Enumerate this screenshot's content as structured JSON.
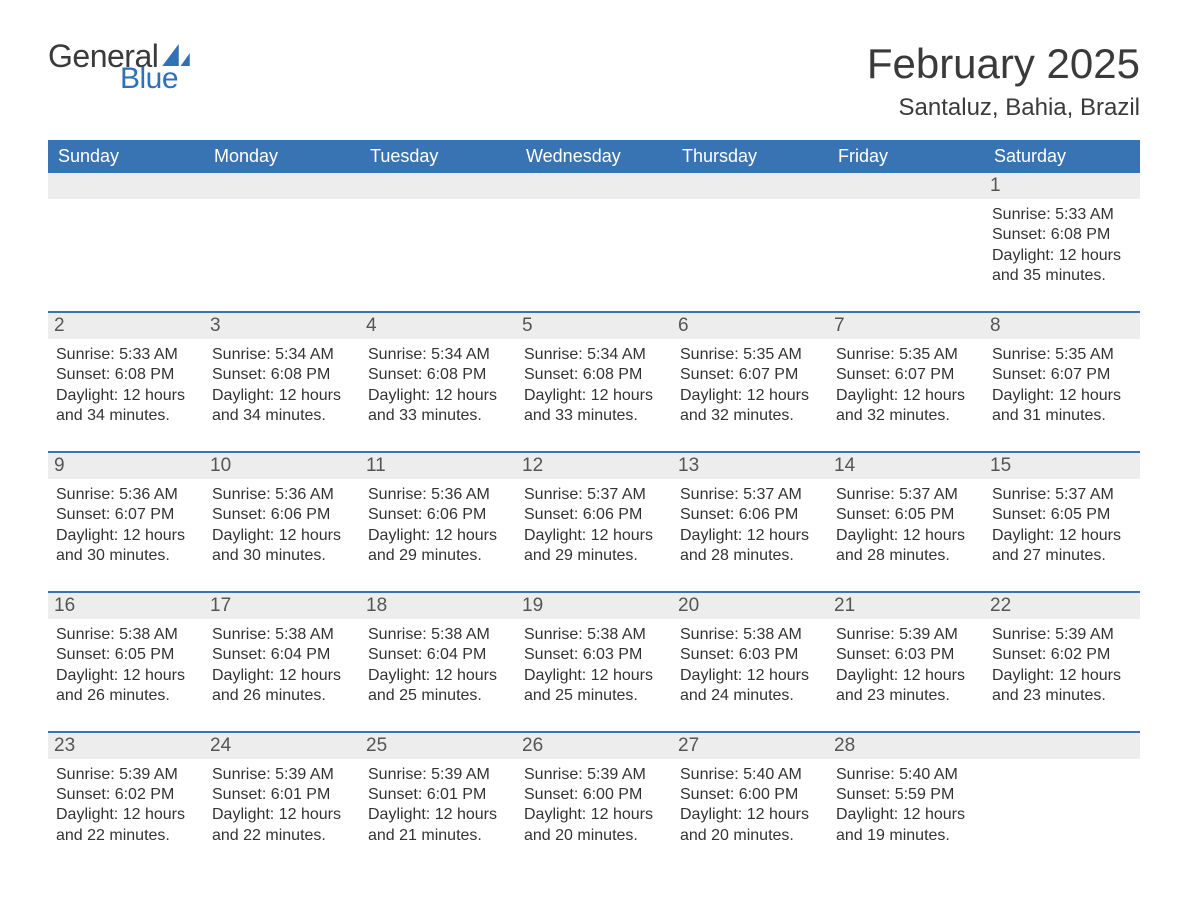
{
  "logo": {
    "general": "General",
    "blue": "Blue"
  },
  "title": "February 2025",
  "location": "Santaluz, Bahia, Brazil",
  "colors": {
    "header_bg": "#3874b3",
    "header_fg": "#ffffff",
    "row_divider": "#3874b3",
    "daynum_bg": "#ededed",
    "text": "#333333",
    "logo_blue": "#2f70b8",
    "background": "#ffffff"
  },
  "day_of_week": [
    "Sunday",
    "Monday",
    "Tuesday",
    "Wednesday",
    "Thursday",
    "Friday",
    "Saturday"
  ],
  "weeks": [
    [
      null,
      null,
      null,
      null,
      null,
      null,
      {
        "n": "1",
        "sunrise": "Sunrise: 5:33 AM",
        "sunset": "Sunset: 6:08 PM",
        "day1": "Daylight: 12 hours",
        "day2": "and 35 minutes."
      }
    ],
    [
      {
        "n": "2",
        "sunrise": "Sunrise: 5:33 AM",
        "sunset": "Sunset: 6:08 PM",
        "day1": "Daylight: 12 hours",
        "day2": "and 34 minutes."
      },
      {
        "n": "3",
        "sunrise": "Sunrise: 5:34 AM",
        "sunset": "Sunset: 6:08 PM",
        "day1": "Daylight: 12 hours",
        "day2": "and 34 minutes."
      },
      {
        "n": "4",
        "sunrise": "Sunrise: 5:34 AM",
        "sunset": "Sunset: 6:08 PM",
        "day1": "Daylight: 12 hours",
        "day2": "and 33 minutes."
      },
      {
        "n": "5",
        "sunrise": "Sunrise: 5:34 AM",
        "sunset": "Sunset: 6:08 PM",
        "day1": "Daylight: 12 hours",
        "day2": "and 33 minutes."
      },
      {
        "n": "6",
        "sunrise": "Sunrise: 5:35 AM",
        "sunset": "Sunset: 6:07 PM",
        "day1": "Daylight: 12 hours",
        "day2": "and 32 minutes."
      },
      {
        "n": "7",
        "sunrise": "Sunrise: 5:35 AM",
        "sunset": "Sunset: 6:07 PM",
        "day1": "Daylight: 12 hours",
        "day2": "and 32 minutes."
      },
      {
        "n": "8",
        "sunrise": "Sunrise: 5:35 AM",
        "sunset": "Sunset: 6:07 PM",
        "day1": "Daylight: 12 hours",
        "day2": "and 31 minutes."
      }
    ],
    [
      {
        "n": "9",
        "sunrise": "Sunrise: 5:36 AM",
        "sunset": "Sunset: 6:07 PM",
        "day1": "Daylight: 12 hours",
        "day2": "and 30 minutes."
      },
      {
        "n": "10",
        "sunrise": "Sunrise: 5:36 AM",
        "sunset": "Sunset: 6:06 PM",
        "day1": "Daylight: 12 hours",
        "day2": "and 30 minutes."
      },
      {
        "n": "11",
        "sunrise": "Sunrise: 5:36 AM",
        "sunset": "Sunset: 6:06 PM",
        "day1": "Daylight: 12 hours",
        "day2": "and 29 minutes."
      },
      {
        "n": "12",
        "sunrise": "Sunrise: 5:37 AM",
        "sunset": "Sunset: 6:06 PM",
        "day1": "Daylight: 12 hours",
        "day2": "and 29 minutes."
      },
      {
        "n": "13",
        "sunrise": "Sunrise: 5:37 AM",
        "sunset": "Sunset: 6:06 PM",
        "day1": "Daylight: 12 hours",
        "day2": "and 28 minutes."
      },
      {
        "n": "14",
        "sunrise": "Sunrise: 5:37 AM",
        "sunset": "Sunset: 6:05 PM",
        "day1": "Daylight: 12 hours",
        "day2": "and 28 minutes."
      },
      {
        "n": "15",
        "sunrise": "Sunrise: 5:37 AM",
        "sunset": "Sunset: 6:05 PM",
        "day1": "Daylight: 12 hours",
        "day2": "and 27 minutes."
      }
    ],
    [
      {
        "n": "16",
        "sunrise": "Sunrise: 5:38 AM",
        "sunset": "Sunset: 6:05 PM",
        "day1": "Daylight: 12 hours",
        "day2": "and 26 minutes."
      },
      {
        "n": "17",
        "sunrise": "Sunrise: 5:38 AM",
        "sunset": "Sunset: 6:04 PM",
        "day1": "Daylight: 12 hours",
        "day2": "and 26 minutes."
      },
      {
        "n": "18",
        "sunrise": "Sunrise: 5:38 AM",
        "sunset": "Sunset: 6:04 PM",
        "day1": "Daylight: 12 hours",
        "day2": "and 25 minutes."
      },
      {
        "n": "19",
        "sunrise": "Sunrise: 5:38 AM",
        "sunset": "Sunset: 6:03 PM",
        "day1": "Daylight: 12 hours",
        "day2": "and 25 minutes."
      },
      {
        "n": "20",
        "sunrise": "Sunrise: 5:38 AM",
        "sunset": "Sunset: 6:03 PM",
        "day1": "Daylight: 12 hours",
        "day2": "and 24 minutes."
      },
      {
        "n": "21",
        "sunrise": "Sunrise: 5:39 AM",
        "sunset": "Sunset: 6:03 PM",
        "day1": "Daylight: 12 hours",
        "day2": "and 23 minutes."
      },
      {
        "n": "22",
        "sunrise": "Sunrise: 5:39 AM",
        "sunset": "Sunset: 6:02 PM",
        "day1": "Daylight: 12 hours",
        "day2": "and 23 minutes."
      }
    ],
    [
      {
        "n": "23",
        "sunrise": "Sunrise: 5:39 AM",
        "sunset": "Sunset: 6:02 PM",
        "day1": "Daylight: 12 hours",
        "day2": "and 22 minutes."
      },
      {
        "n": "24",
        "sunrise": "Sunrise: 5:39 AM",
        "sunset": "Sunset: 6:01 PM",
        "day1": "Daylight: 12 hours",
        "day2": "and 22 minutes."
      },
      {
        "n": "25",
        "sunrise": "Sunrise: 5:39 AM",
        "sunset": "Sunset: 6:01 PM",
        "day1": "Daylight: 12 hours",
        "day2": "and 21 minutes."
      },
      {
        "n": "26",
        "sunrise": "Sunrise: 5:39 AM",
        "sunset": "Sunset: 6:00 PM",
        "day1": "Daylight: 12 hours",
        "day2": "and 20 minutes."
      },
      {
        "n": "27",
        "sunrise": "Sunrise: 5:40 AM",
        "sunset": "Sunset: 6:00 PM",
        "day1": "Daylight: 12 hours",
        "day2": "and 20 minutes."
      },
      {
        "n": "28",
        "sunrise": "Sunrise: 5:40 AM",
        "sunset": "Sunset: 5:59 PM",
        "day1": "Daylight: 12 hours",
        "day2": "and 19 minutes."
      },
      null
    ]
  ]
}
